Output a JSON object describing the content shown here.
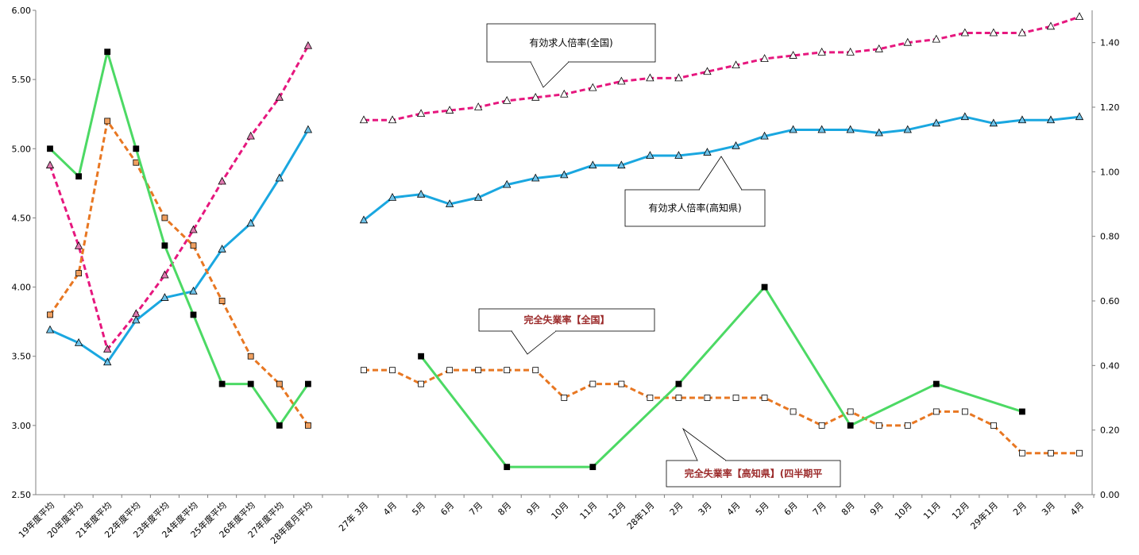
{
  "chart_data": {
    "type": "line",
    "categories": [
      "19年度平均",
      "20年度平均",
      "21年度平均",
      "22年度平均",
      "23年度平均",
      "24年度平均",
      "25年度平均",
      "26年度平均",
      "27年度平均",
      "28年度月平均",
      "",
      "27年 3月",
      "4月",
      "5月",
      "6月",
      "7月",
      "8月",
      "9月",
      "10月",
      "11月",
      "12月",
      "28年1月",
      "2月",
      "3月",
      "4月",
      "5月",
      "6月",
      "7月",
      "8月",
      "9月",
      "10月",
      "11月",
      "12月",
      "29年1月",
      "2月",
      "3月",
      "4月"
    ],
    "left_axis": {
      "range": [
        2.5,
        6.0
      ],
      "ticks": [
        2.5,
        3.0,
        3.5,
        4.0,
        4.5,
        5.0,
        5.5,
        6.0
      ],
      "tick_labels": [
        "2.50",
        "3.00",
        "3.50",
        "4.00",
        "4.50",
        "5.00",
        "5.50",
        "6.00"
      ]
    },
    "right_axis": {
      "range": [
        0.0,
        1.5
      ],
      "ticks": [
        0.0,
        0.2,
        0.4,
        0.6,
        0.8,
        1.0,
        1.2,
        1.4
      ],
      "tick_labels": [
        "0.00",
        "0.20",
        "0.40",
        "0.60",
        "0.80",
        "1.00",
        "1.20",
        "1.40"
      ]
    },
    "grid": false,
    "series": [
      {
        "name": "有効求人倍率(全国)",
        "axis": "right",
        "color": "#e6177e",
        "dash": true,
        "marker": "triangle",
        "marker_fill": "#e07ab0",
        "annual": [
          1.02,
          0.77,
          0.45,
          0.56,
          0.68,
          0.82,
          0.97,
          1.11,
          1.23,
          1.39
        ],
        "monthly": [
          1.16,
          1.16,
          1.18,
          1.19,
          1.2,
          1.22,
          1.23,
          1.24,
          1.26,
          1.28,
          1.29,
          1.29,
          1.31,
          1.33,
          1.35,
          1.36,
          1.37,
          1.37,
          1.38,
          1.4,
          1.41,
          1.43,
          1.43,
          1.43,
          1.45,
          1.48
        ],
        "monthly_marker_fill": "#ffffff"
      },
      {
        "name": "有効求人倍率(高知県)",
        "axis": "right",
        "color": "#1aa7e0",
        "dash": false,
        "marker": "triangle",
        "marker_fill": "#6fc3ea",
        "annual": [
          0.51,
          0.47,
          0.41,
          0.54,
          0.61,
          0.63,
          0.76,
          0.84,
          0.98,
          1.13
        ],
        "monthly": [
          0.85,
          0.92,
          0.93,
          0.9,
          0.92,
          0.96,
          0.98,
          0.99,
          1.02,
          1.02,
          1.05,
          1.05,
          1.06,
          1.08,
          1.11,
          1.13,
          1.13,
          1.13,
          1.12,
          1.13,
          1.15,
          1.17,
          1.15,
          1.16,
          1.16,
          1.17
        ],
        "monthly_marker_fill": "#6fc3ea"
      },
      {
        "name": "完全失業率【全国】",
        "axis": "left",
        "color": "#e87722",
        "dash": true,
        "marker": "square",
        "marker_fill": "#f0a060",
        "annual": [
          3.8,
          4.1,
          5.2,
          4.9,
          4.5,
          4.3,
          3.9,
          3.5,
          3.3,
          3.0
        ],
        "monthly": [
          3.4,
          3.4,
          3.3,
          3.4,
          3.4,
          3.4,
          3.4,
          3.2,
          3.3,
          3.3,
          3.2,
          3.2,
          3.2,
          3.2,
          3.2,
          3.1,
          3.0,
          3.1,
          3.0,
          3.0,
          3.1,
          3.1,
          3.0,
          2.8,
          2.8,
          2.8
        ],
        "monthly_marker_fill": "#ffffff"
      },
      {
        "name": "完全失業率【高知県】(四半期平",
        "axis": "left",
        "color": "#4cd964",
        "dash": false,
        "marker": "square",
        "marker_fill": "#000000",
        "annual": [
          5.0,
          4.8,
          5.7,
          5.0,
          4.3,
          3.8,
          3.3,
          3.3,
          3.0,
          3.3
        ],
        "quarterly": [
          {
            "idx": 2,
            "value": 3.5
          },
          {
            "idx": 5,
            "value": 2.7
          },
          {
            "idx": 8,
            "value": 2.7
          },
          {
            "idx": 11,
            "value": 3.3
          },
          {
            "idx": 14,
            "value": 4.0
          },
          {
            "idx": 17,
            "value": 3.0
          },
          {
            "idx": 20,
            "value": 3.3
          },
          {
            "idx": 23,
            "value": 3.1
          }
        ]
      }
    ],
    "callouts": [
      {
        "text": "有効求人倍率(全国)",
        "color": "#000000",
        "bold": false
      },
      {
        "text": "有効求人倍率(高知県)",
        "color": "#000000",
        "bold": false
      },
      {
        "text": "完全失業率【全国】",
        "color": "#9b2a2a",
        "bold": true
      },
      {
        "text": "完全失業率【高知県】(四半期平",
        "color": "#9b2a2a",
        "bold": true
      }
    ]
  }
}
